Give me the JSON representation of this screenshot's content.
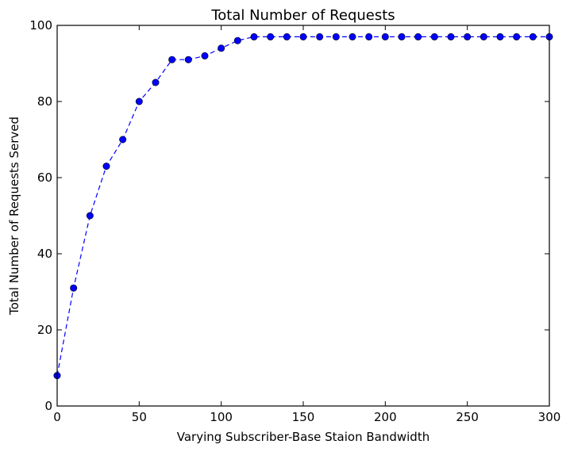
{
  "chart_data": {
    "type": "line",
    "title": "Total Number of Requests",
    "xlabel": "Varying Subscriber-Base Staion Bandwidth",
    "ylabel": "Total Number of Requests Served",
    "xlim": [
      0,
      300
    ],
    "ylim": [
      0,
      100
    ],
    "x_ticks": [
      0,
      50,
      100,
      150,
      200,
      250,
      300
    ],
    "y_ticks": [
      0,
      20,
      40,
      60,
      80,
      100
    ],
    "grid": false,
    "series": [
      {
        "line_style": "dashed",
        "marker": "circle",
        "color": "#0000ff",
        "x": [
          0,
          10,
          20,
          30,
          40,
          50,
          60,
          70,
          80,
          90,
          100,
          110,
          120,
          130,
          140,
          150,
          160,
          170,
          180,
          190,
          200,
          210,
          220,
          230,
          240,
          250,
          260,
          270,
          280,
          290,
          300
        ],
        "y": [
          8,
          31,
          50,
          63,
          70,
          80,
          85,
          91,
          91,
          92,
          94,
          96,
          97,
          97,
          97,
          97,
          97,
          97,
          97,
          97,
          97,
          97,
          97,
          97,
          97,
          97,
          97,
          97,
          97,
          97,
          97
        ]
      }
    ]
  }
}
